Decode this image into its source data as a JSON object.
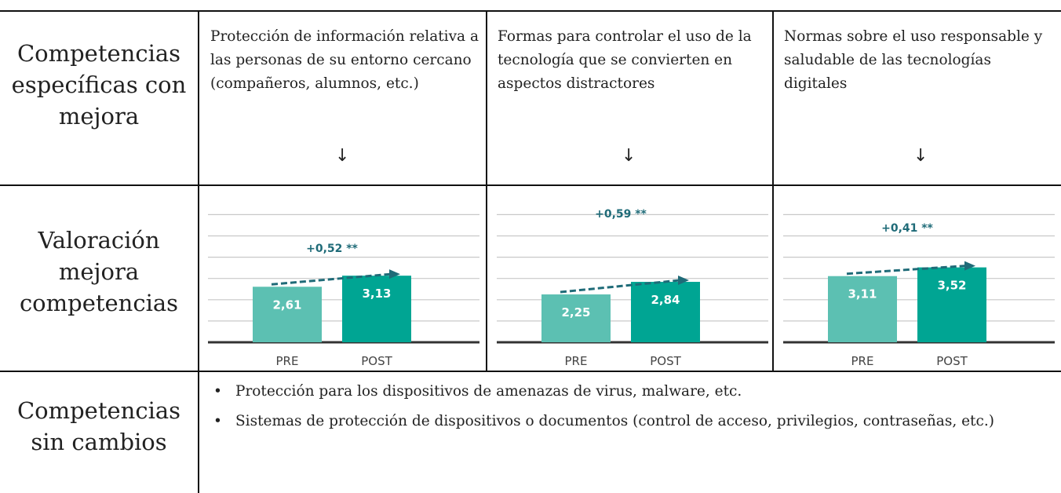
{
  "row_headers": [
    "Competencias específicas con mejora",
    "Valoración mejora competencias",
    "Competencias sin cambios"
  ],
  "topics": [
    "Protección de información relativa a las personas de su entorno cercano (compañeros, alumnos, etc.)",
    "Formas para controlar el uso de la tecnología que se convierten en aspectos distractores",
    "Normas sobre el uso responsable y saludable de las tecnologías digitales"
  ],
  "unchanged": [
    "Protección para los dispositivos de amenazas de virus, malware, etc.",
    "Sistemas de protección de dispositivos o documentos (control de acceso, privilegios, contraseñas, etc.)"
  ],
  "chart_data": [
    {
      "type": "bar",
      "categories": [
        "PRE",
        "POST"
      ],
      "values": [
        2.61,
        3.13
      ],
      "value_labels": [
        "2,61",
        "3,13"
      ],
      "colors": [
        "#5cc0b2",
        "#00a593"
      ],
      "annotation": "+0,52 **",
      "ylim": [
        0,
        6
      ],
      "yticks": [
        0,
        1,
        2,
        3,
        4,
        5,
        6
      ],
      "grid": true
    },
    {
      "type": "bar",
      "categories": [
        "PRE",
        "POST"
      ],
      "values": [
        2.25,
        2.84
      ],
      "value_labels": [
        "2,25",
        "2,84"
      ],
      "colors": [
        "#5cc0b2",
        "#00a593"
      ],
      "annotation": "+0,59 **",
      "ylim": [
        0,
        6
      ],
      "yticks": [
        0,
        1,
        2,
        3,
        4,
        5,
        6
      ],
      "grid": true
    },
    {
      "type": "bar",
      "categories": [
        "PRE",
        "POST"
      ],
      "values": [
        3.11,
        3.52
      ],
      "value_labels": [
        "3,11",
        "3,52"
      ],
      "colors": [
        "#5cc0b2",
        "#00a593"
      ],
      "annotation": "+0,41 **",
      "ylim": [
        0,
        6
      ],
      "yticks": [
        0,
        1,
        2,
        3,
        4,
        5,
        6
      ],
      "grid": true
    }
  ]
}
